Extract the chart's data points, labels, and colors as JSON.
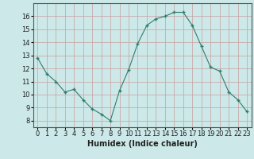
{
  "x": [
    0,
    1,
    2,
    3,
    4,
    5,
    6,
    7,
    8,
    9,
    10,
    11,
    12,
    13,
    14,
    15,
    16,
    17,
    18,
    19,
    20,
    21,
    22,
    23
  ],
  "y": [
    12.8,
    11.6,
    11.0,
    10.2,
    10.4,
    9.6,
    8.9,
    8.5,
    8.0,
    10.3,
    11.9,
    13.9,
    15.3,
    15.8,
    16.0,
    16.3,
    16.3,
    15.3,
    13.7,
    12.1,
    11.8,
    10.2,
    9.6,
    8.7
  ],
  "xlabel": "Humidex (Indice chaleur)",
  "ylim": [
    7.5,
    17.0
  ],
  "xlim": [
    -0.5,
    23.5
  ],
  "line_color": "#2e7d6e",
  "marker_color": "#2e7d6e",
  "bg_color": "#cce8e8",
  "grid_color": "#c8a0a0",
  "spine_color": "#555555",
  "xticks": [
    0,
    1,
    2,
    3,
    4,
    5,
    6,
    7,
    8,
    9,
    10,
    11,
    12,
    13,
    14,
    15,
    16,
    17,
    18,
    19,
    20,
    21,
    22,
    23
  ],
  "yticks": [
    8,
    9,
    10,
    11,
    12,
    13,
    14,
    15,
    16
  ],
  "tick_label_fontsize": 6,
  "xlabel_fontsize": 7
}
